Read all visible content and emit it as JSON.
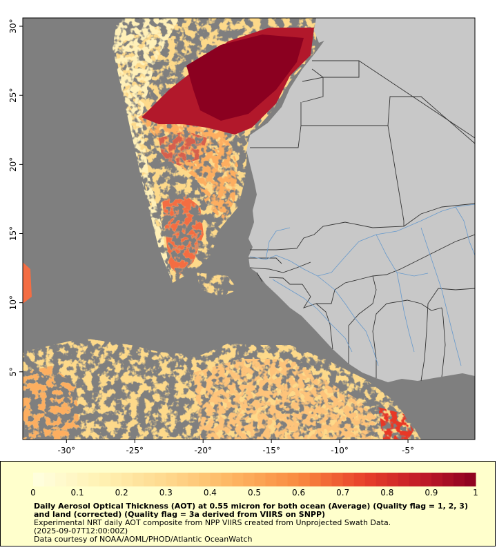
{
  "map": {
    "lon_ticks": [
      -30,
      -25,
      -20,
      -15,
      -10,
      -5
    ],
    "lat_ticks": [
      5,
      10,
      15,
      20,
      25,
      30
    ],
    "lon_labels": [
      "-30°",
      "-25°",
      "-20°",
      "-15°",
      "-10°",
      "-5°"
    ],
    "lat_labels": [
      "5°",
      "10°",
      "15°",
      "20°",
      "25°",
      "30°"
    ],
    "extent": {
      "lon_min": -33.2,
      "lon_max": -0.1,
      "lat_min": 0.1,
      "lat_max": 30.6
    }
  },
  "colors": {
    "ocean_background": "#7f7f7f",
    "land": "#c8c8c8",
    "borders": "#333333",
    "rivers": "#6699cc",
    "legend_bg": "#ffffcc"
  },
  "legend": {
    "colorbar_ticks": [
      "0",
      "0.1",
      "0.2",
      "0.3",
      "0.4",
      "0.5",
      "0.6",
      "0.7",
      "0.8",
      "0.9",
      "1"
    ],
    "range": [
      0,
      1
    ],
    "title": "Daily Aerosol Optical Thickness (AOT) at 0.55 micron for both ocean (Average) (Quality flag = 1, 2, 3) and land (corrected) (Quality flag = 3a derived from VIIRS on SNPP)",
    "subtitle": "Experimental NRT daily AOT composite from NPP VIIRS created from Unprojected Swath Data.",
    "date": "(2025-09-07T12:00:00Z)",
    "credit": "Data courtesy of NOAA/AOML/PHOD/Atlantic OceanWatch"
  }
}
